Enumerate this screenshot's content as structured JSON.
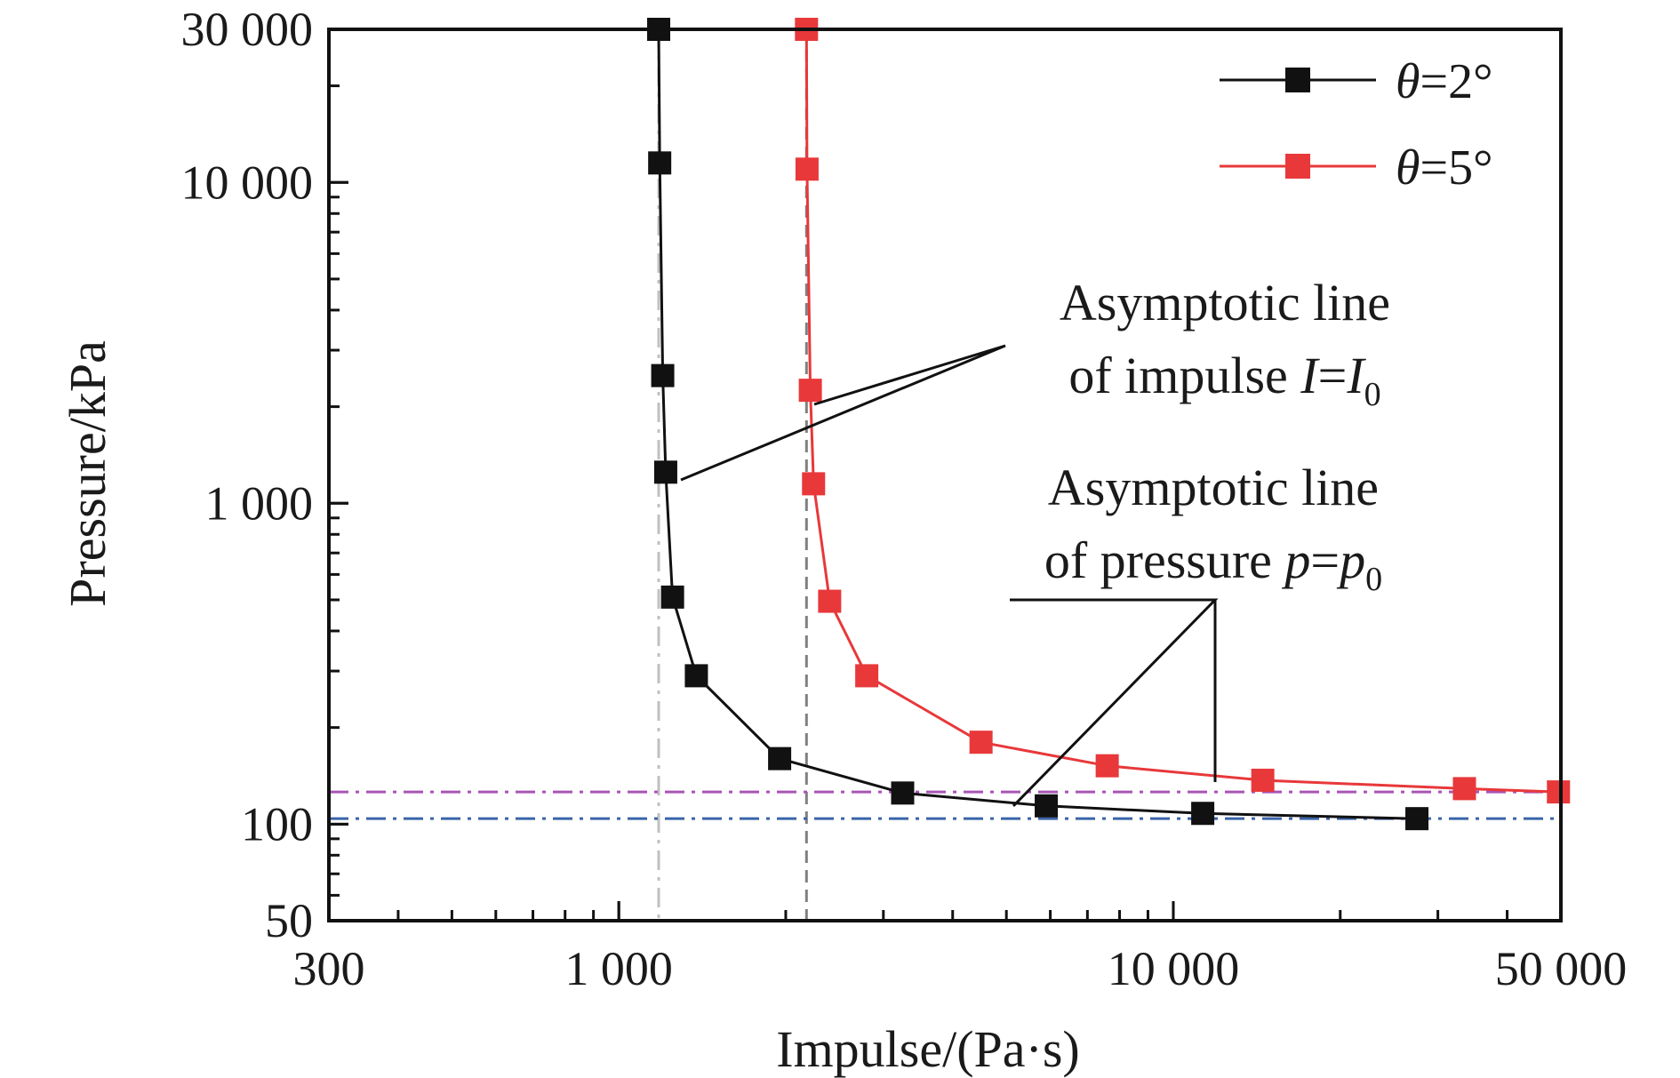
{
  "chart_data": {
    "type": "line",
    "xlabel": "Impulse/(Pa·s)",
    "ylabel": "Pressure/kPa",
    "x_scale": "log",
    "y_scale": "log",
    "xlim": [
      300,
      50000
    ],
    "ylim": [
      50,
      30000
    ],
    "x_ticks": [
      {
        "value": 300,
        "label": "300"
      },
      {
        "value": 1000,
        "label": "1 000"
      },
      {
        "value": 10000,
        "label": "10 000"
      },
      {
        "value": 50000,
        "label": "50 000"
      }
    ],
    "y_ticks": [
      {
        "value": 50,
        "label": "50"
      },
      {
        "value": 100,
        "label": "100"
      },
      {
        "value": 1000,
        "label": "1 000"
      },
      {
        "value": 10000,
        "label": "10 000"
      },
      {
        "value": 30000,
        "label": "30 000"
      }
    ],
    "legend_position": "top-right",
    "grid": false,
    "series": [
      {
        "name_symbol": "θ",
        "name_rest": "=2°",
        "color": "#111111",
        "marker": "square",
        "points": [
          [
            1180,
            30000
          ],
          [
            1185,
            11500
          ],
          [
            1200,
            2500
          ],
          [
            1215,
            1250
          ],
          [
            1250,
            510
          ],
          [
            1380,
            290
          ],
          [
            1950,
            160
          ],
          [
            3250,
            125
          ],
          [
            5900,
            114
          ],
          [
            11300,
            108
          ],
          [
            27500,
            104
          ]
        ]
      },
      {
        "name_symbol": "θ",
        "name_rest": "=5°",
        "color": "#e8383a",
        "marker": "square",
        "points": [
          [
            2180,
            30000
          ],
          [
            2185,
            11000
          ],
          [
            2215,
            2250
          ],
          [
            2245,
            1150
          ],
          [
            2400,
            495
          ],
          [
            2800,
            290
          ],
          [
            4500,
            180
          ],
          [
            7600,
            152
          ],
          [
            14500,
            137
          ],
          [
            33500,
            129
          ],
          [
            49500,
            126
          ]
        ]
      }
    ],
    "asymptotes": [
      {
        "orientation": "vertical",
        "value": 1180,
        "color": "#c0c0c0",
        "style": "dash-dot"
      },
      {
        "orientation": "vertical",
        "value": 2180,
        "color": "#808080",
        "style": "dash"
      },
      {
        "orientation": "horizontal",
        "value": 126,
        "color": "#a855b5",
        "style": "dash-dot"
      },
      {
        "orientation": "horizontal",
        "value": 104,
        "color": "#3a64a8",
        "style": "dash-dot"
      }
    ],
    "annotations": [
      {
        "line1": "Asymptotic line",
        "line2_prefix": "of impulse ",
        "var": "I",
        "eq": "=",
        "var2": "I",
        "sub": "0"
      },
      {
        "line1": "Asymptotic line",
        "line2_prefix": "of pressure ",
        "var": "p",
        "eq": "=",
        "var2": "p",
        "sub": "0"
      }
    ]
  }
}
